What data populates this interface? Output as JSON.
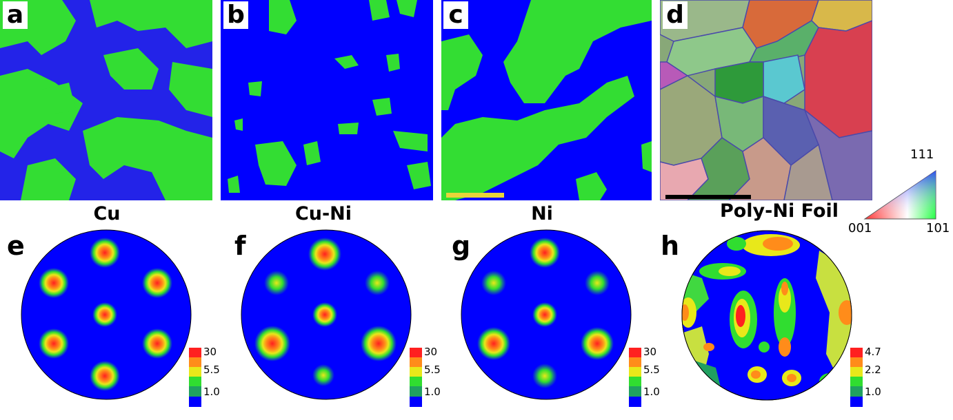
{
  "figure": {
    "panels": {
      "a": "a",
      "b": "b",
      "c": "c",
      "d": "d",
      "e": "e",
      "f": "f",
      "g": "g",
      "h": "h"
    },
    "pole_figure_titles": {
      "e": "Cu",
      "f": "Cu-Ni",
      "g": "Ni",
      "h": "Poly-Ni Foil"
    },
    "colorbars": {
      "e": [
        "30",
        "5.5",
        "1.0"
      ],
      "f": [
        "30",
        "5.5",
        "1.0"
      ],
      "g": [
        "30",
        "5.5",
        "1.0"
      ],
      "h": [
        "4.7",
        "2.2",
        "1.0"
      ]
    },
    "ipf_triangle": {
      "top": "111",
      "left": "001",
      "right": "101"
    },
    "colors": {
      "map_blue": "#0000ff",
      "map_green": "#22dd22",
      "scale_bar_yellow": "#e8d43a",
      "scale_bar_black": "#000000"
    }
  }
}
